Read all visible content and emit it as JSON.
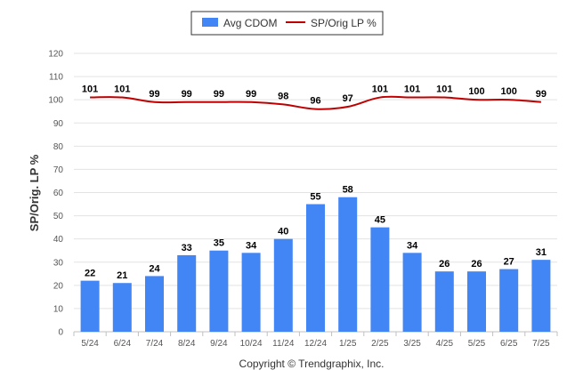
{
  "chart_data": {
    "type": "bar",
    "title": "",
    "xlabel": "",
    "ylabel": "SP/Orig. LP %",
    "ylim": [
      0,
      120
    ],
    "yticks": [
      0,
      10,
      20,
      30,
      40,
      50,
      60,
      70,
      80,
      90,
      100,
      110,
      120
    ],
    "grid": true,
    "legend_position": "top-center",
    "categories": [
      "5/24",
      "6/24",
      "7/24",
      "8/24",
      "9/24",
      "10/24",
      "11/24",
      "12/24",
      "1/25",
      "2/25",
      "3/25",
      "4/25",
      "5/25",
      "6/25",
      "7/25"
    ],
    "series": [
      {
        "name": "Avg CDOM",
        "kind": "bar",
        "color": "#4285f4",
        "values": [
          22,
          21,
          24,
          33,
          35,
          34,
          40,
          55,
          58,
          45,
          34,
          26,
          26,
          27,
          31
        ]
      },
      {
        "name": "SP/Orig LP %",
        "kind": "line",
        "color": "#c00000",
        "values": [
          101,
          101,
          99,
          99,
          99,
          99,
          98,
          96,
          97,
          101,
          101,
          101,
          100,
          100,
          99
        ]
      }
    ]
  },
  "footer": {
    "copyright": "Copyright © Trendgraphix, Inc."
  }
}
